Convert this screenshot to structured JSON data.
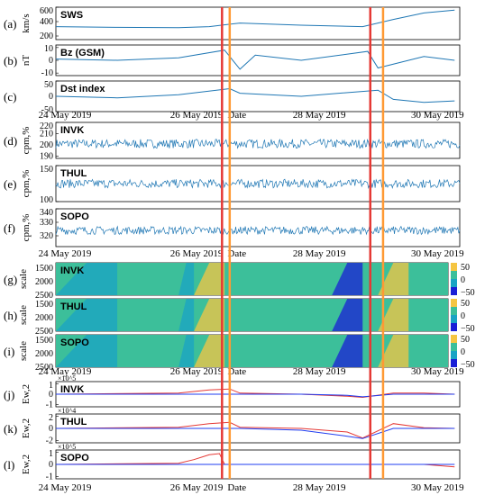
{
  "figure": {
    "event_lines": {
      "red_x": [
        "2019-05-26T17:00",
        "2019-05-29T03:00"
      ],
      "orange_x": [
        "2019-05-26T20:00",
        "2019-05-29T08:00"
      ],
      "red_color": "#e53935",
      "orange_color": "#ff9933"
    },
    "line_color": "#1f77b4",
    "heatmap_colors": [
      "#1a1fd6",
      "#1aa3c4",
      "#3cbf9a",
      "#f5c542"
    ]
  },
  "chart_data": [
    {
      "id": "a",
      "panel_label": "(a)",
      "type": "line",
      "title": "SWS",
      "ylabel": "km/s",
      "yticks": [
        "600",
        "400",
        "200"
      ],
      "ylim": [
        150,
        600
      ],
      "x": [
        "2019-05-24",
        "2019-05-25",
        "2019-05-26",
        "2019-05-26T12:00",
        "2019-05-27",
        "2019-05-28",
        "2019-05-29",
        "2019-05-29T12:00",
        "2019-05-30",
        "2019-05-30T12:00"
      ],
      "series": [
        {
          "values": [
            330,
            320,
            315,
            330,
            380,
            350,
            330,
            430,
            520,
            560
          ]
        }
      ]
    },
    {
      "id": "b",
      "panel_label": "(b)",
      "type": "line",
      "title": "Bz (GSM)",
      "ylabel": "nT",
      "yticks": [
        "10",
        "0",
        "-10"
      ],
      "ylim": [
        -12,
        12
      ],
      "x": [
        "2019-05-24",
        "2019-05-25",
        "2019-05-26",
        "2019-05-26T18:00",
        "2019-05-27",
        "2019-05-27T06:00",
        "2019-05-28",
        "2019-05-29T02:00",
        "2019-05-29T06:00",
        "2019-05-30",
        "2019-05-30T12:00"
      ],
      "series": [
        {
          "values": [
            1,
            0,
            2,
            8,
            -7,
            4,
            0,
            7,
            -6,
            3,
            0
          ]
        }
      ]
    },
    {
      "id": "c",
      "panel_label": "(c)",
      "type": "line",
      "title": "Dst index",
      "yticks": [
        "50",
        "0",
        "-50"
      ],
      "ylim": [
        -50,
        50
      ],
      "x": [
        "2019-05-24",
        "2019-05-25",
        "2019-05-26",
        "2019-05-26T20:00",
        "2019-05-27",
        "2019-05-28",
        "2019-05-29T06:00",
        "2019-05-29T12:00",
        "2019-05-30",
        "2019-05-30T12:00"
      ],
      "series": [
        {
          "values": [
            0,
            -5,
            5,
            25,
            10,
            0,
            20,
            -10,
            -20,
            -15
          ]
        }
      ],
      "xticks": [
        "24 May 2019",
        "26 May 2019",
        "Date",
        "28 May 2019",
        "30 May 2019"
      ]
    },
    {
      "id": "d",
      "panel_label": "(d)",
      "type": "line",
      "title": "INVK",
      "ylabel": "cpm,%",
      "yticks": [
        "220",
        "210",
        "200",
        "190"
      ],
      "ylim": [
        188,
        220
      ],
      "mean": 201,
      "noise": 4
    },
    {
      "id": "e",
      "panel_label": "(e)",
      "type": "line",
      "title": "THUL",
      "ylabel": "cpm,%",
      "yticks": [
        "150",
        "100"
      ],
      "ylim": [
        100,
        150
      ],
      "mean": 125,
      "noise": 6
    },
    {
      "id": "f",
      "panel_label": "(f)",
      "type": "line",
      "title": "SOPO",
      "ylabel": "cpm,%",
      "yticks": [
        "340",
        "330",
        "320"
      ],
      "ylim": [
        312,
        340
      ],
      "mean": 324,
      "noise": 3,
      "xticks": [
        "24 May 2019",
        "26 May 2019",
        "Date",
        "28 May 2019",
        "30 May 2019"
      ]
    },
    {
      "id": "g",
      "panel_label": "(g)",
      "type": "heatmap",
      "title": "INVK",
      "ylabel": "scale",
      "yticks": [
        "1500",
        "2000",
        "2500"
      ],
      "colorbar_ticks": [
        "50",
        "0",
        "−50"
      ]
    },
    {
      "id": "h",
      "panel_label": "(h)",
      "type": "heatmap",
      "title": "THUL",
      "ylabel": "scale",
      "yticks": [
        "1500",
        "2000",
        "2500"
      ],
      "colorbar_ticks": [
        "50",
        "0",
        "−50"
      ]
    },
    {
      "id": "i",
      "panel_label": "(i)",
      "type": "heatmap",
      "title": "SOPO",
      "ylabel": "scale",
      "yticks": [
        "1500",
        "2000",
        "2500"
      ],
      "colorbar_ticks": [
        "50",
        "0",
        "−50"
      ],
      "xticks": [
        "24 May 2019",
        "26 May 2019",
        "Date",
        "28 May 2019",
        "30 May 2019"
      ]
    },
    {
      "id": "j",
      "panel_label": "(j)",
      "type": "line",
      "title": "INVK",
      "ylabel": "Ew,2",
      "multiplier": "×10^5",
      "yticks": [
        "1",
        "0",
        "-1"
      ],
      "ylim": [
        -1.2,
        1.2
      ],
      "x": [
        "2019-05-24",
        "2019-05-26",
        "2019-05-26T12:00",
        "2019-05-26T20:00",
        "2019-05-27",
        "2019-05-28",
        "2019-05-28T18:00",
        "2019-05-29",
        "2019-05-29T12:00",
        "2019-05-30",
        "2019-05-30T12:00"
      ],
      "series": [
        {
          "color": "#e53935",
          "values": [
            0,
            0.1,
            0.4,
            0.5,
            0.1,
            0,
            -0.2,
            -0.3,
            0.1,
            0.1,
            0
          ]
        },
        {
          "color": "#1f3cf0",
          "values": [
            0,
            0,
            0,
            0,
            0,
            0,
            -0.1,
            -0.25,
            0,
            0,
            0
          ]
        }
      ]
    },
    {
      "id": "k",
      "panel_label": "(k)",
      "type": "line",
      "title": "THUL",
      "ylabel": "Ew,2",
      "multiplier": "×10^4",
      "yticks": [
        "2",
        "0",
        "-2"
      ],
      "ylim": [
        -2.4,
        2.4
      ],
      "x": [
        "2019-05-24",
        "2019-05-26",
        "2019-05-26T12:00",
        "2019-05-26T20:00",
        "2019-05-27",
        "2019-05-28",
        "2019-05-28T18:00",
        "2019-05-29",
        "2019-05-29T12:00",
        "2019-05-30",
        "2019-05-30T12:00"
      ],
      "series": [
        {
          "color": "#e53935",
          "values": [
            0,
            0.2,
            0.8,
            1.0,
            0.2,
            0,
            -0.6,
            -1.6,
            0.8,
            0.1,
            0
          ]
        },
        {
          "color": "#1f3cf0",
          "values": [
            0,
            0,
            0,
            0,
            0,
            -0.3,
            -1.3,
            -1.7,
            0,
            0,
            0
          ]
        }
      ]
    },
    {
      "id": "l",
      "panel_label": "(l)",
      "type": "line",
      "title": "SOPO",
      "ylabel": "Ew,2",
      "multiplier": "×10^5",
      "yticks": [
        "1",
        "0",
        "-1"
      ],
      "ylim": [
        -1.2,
        1.2
      ],
      "x": [
        "2019-05-24",
        "2019-05-26",
        "2019-05-26T06:00",
        "2019-05-26T12:00",
        "2019-05-26T16:00",
        "2019-05-26T18:00",
        "2019-05-27",
        "2019-05-30",
        "2019-05-30T12:00"
      ],
      "series": [
        {
          "color": "#e53935",
          "values": [
            0,
            0.1,
            0.4,
            0.8,
            0.9,
            0,
            0,
            0,
            -0.2
          ]
        },
        {
          "color": "#1f3cf0",
          "values": [
            0,
            0,
            0,
            0,
            0,
            0,
            0,
            0,
            0
          ]
        }
      ],
      "xticks": [
        "24 May 2019",
        "26 May 2019",
        "Date",
        "28 May 2019",
        "30 May 2019"
      ]
    }
  ]
}
